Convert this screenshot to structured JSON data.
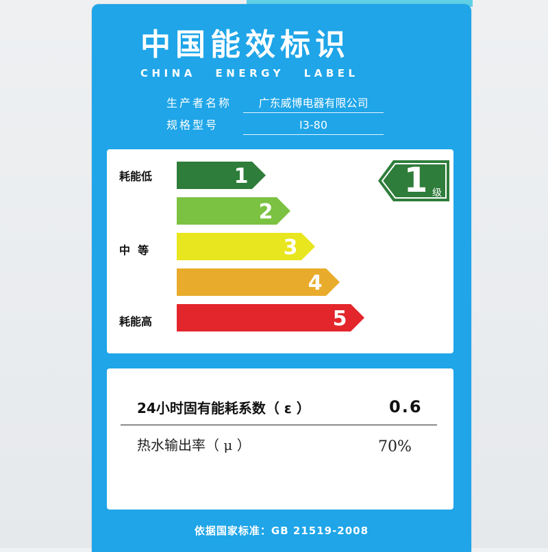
{
  "header": {
    "title_cn": "中国能效标识",
    "title_en": "CHINA ENERGY LABEL"
  },
  "info": {
    "manufacturer_label": "生产者名称",
    "manufacturer_value": "广东威博电器有限公司",
    "model_label": "规格型号",
    "model_value": "I3-80"
  },
  "scale": {
    "low_label": "耗能低",
    "mid_label": "中  等",
    "high_label": "耗能高",
    "grades": [
      {
        "number": "1",
        "color": "#2e7d3a"
      },
      {
        "number": "2",
        "color": "#7cc242"
      },
      {
        "number": "3",
        "color": "#e8e61e"
      },
      {
        "number": "4",
        "color": "#e9ab2b"
      },
      {
        "number": "5",
        "color": "#e3262c"
      }
    ]
  },
  "rating": {
    "grade": "1",
    "unit": "级",
    "color": "#2e7d3a"
  },
  "metrics": [
    {
      "label": "24小时固有能耗系数（ ε ）",
      "value": "0.6"
    },
    {
      "label": "热水输出率（ μ ）",
      "value": "70%"
    }
  ],
  "footer": {
    "text": "依据国家标准：GB 21519-2008"
  },
  "colors": {
    "label_blue": "#1fa5e8",
    "panel_white": "#ffffff"
  }
}
